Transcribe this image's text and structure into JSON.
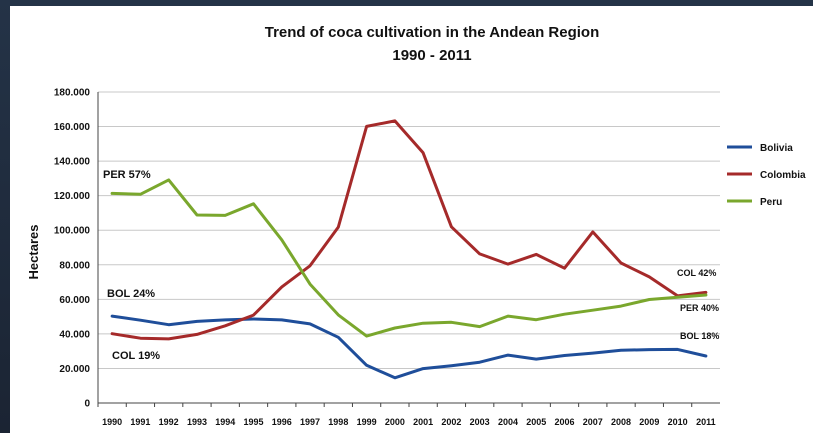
{
  "chart_data": {
    "type": "line",
    "title": "Trend of coca cultivation in the Andean Region",
    "subtitle": "1990 - 2011",
    "xlabel": "",
    "ylabel": "Hectares",
    "ylim": [
      0,
      180000
    ],
    "y_ticks": [
      "0",
      "20.000",
      "40.000",
      "60.000",
      "80.000",
      "100.000",
      "120.000",
      "140.000",
      "160.000",
      "180.000"
    ],
    "categories": [
      "1990",
      "1991",
      "1992",
      "1993",
      "1994",
      "1995",
      "1996",
      "1997",
      "1998",
      "1999",
      "2000",
      "2001",
      "2002",
      "2003",
      "2004",
      "2005",
      "2006",
      "2007",
      "2008",
      "2009",
      "2010",
      "2011"
    ],
    "grid": "horizontal",
    "legend_position": "right",
    "series": [
      {
        "name": "Bolivia",
        "color": "#1f4e9a",
        "values": [
          50300,
          47900,
          45300,
          47200,
          48100,
          48600,
          48100,
          45800,
          38000,
          21800,
          14600,
          19900,
          21600,
          23600,
          27700,
          25400,
          27500,
          28900,
          30500,
          30900,
          31000,
          27200
        ]
      },
      {
        "name": "Colombia",
        "color": "#a52a2a",
        "values": [
          40100,
          37500,
          37100,
          39700,
          44700,
          50900,
          67200,
          79400,
          101800,
          160100,
          163300,
          144800,
          102000,
          86300,
          80400,
          86000,
          78000,
          99000,
          81000,
          73000,
          62000,
          64000
        ]
      },
      {
        "name": "Peru",
        "color": "#7aa72d",
        "values": [
          121300,
          120800,
          129100,
          108800,
          108600,
          115300,
          94400,
          68800,
          51000,
          38700,
          43400,
          46200,
          46700,
          44200,
          50300,
          48200,
          51400,
          53700,
          56100,
          59900,
          61200,
          62500
        ]
      }
    ],
    "annotations": [
      {
        "text": "PER 57%",
        "series": "Peru",
        "anchor_year": "1990"
      },
      {
        "text": "BOL 24%",
        "series": "Bolivia",
        "anchor_year": "1990"
      },
      {
        "text": "COL 19%",
        "series": "Colombia",
        "anchor_year": "1990"
      },
      {
        "text": "COL 42%",
        "series": "Colombia",
        "anchor_year": "2011"
      },
      {
        "text": "PER 40%",
        "series": "Peru",
        "anchor_year": "2011"
      },
      {
        "text": "BOL 18%",
        "series": "Bolivia",
        "anchor_year": "2011"
      }
    ]
  }
}
